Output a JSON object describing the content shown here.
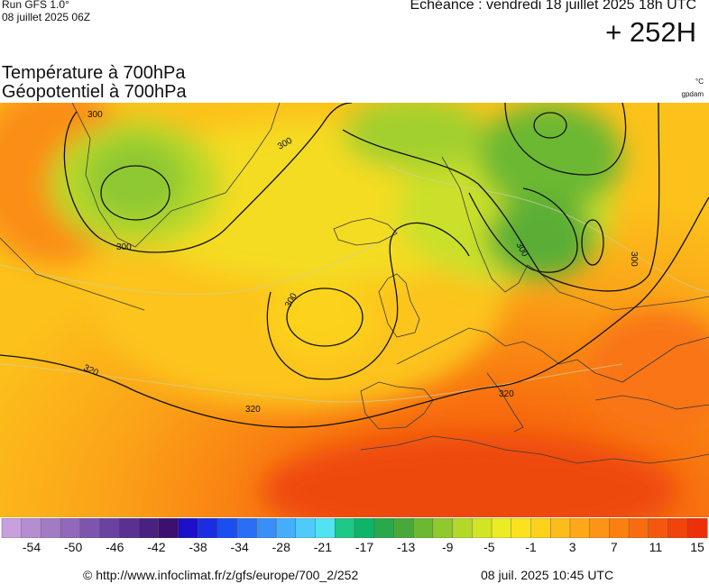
{
  "header": {
    "run_title": "Run GFS 1.0°",
    "run_date": "08 juillet 2025 06Z",
    "echeance": "Echéance : vendredi 18 juillet 2025 18h UTC",
    "lead_time": "+ 252H"
  },
  "titles": {
    "line1": "Température à 700hPa",
    "line2": "Géopotentiel à 700hPa"
  },
  "units": {
    "temperature": "°C",
    "geopotential": "gpdam"
  },
  "map": {
    "region": "Europe",
    "contour_labels": [
      {
        "value": "300"
      },
      {
        "value": "300"
      },
      {
        "value": "300"
      },
      {
        "value": "300"
      },
      {
        "value": "300"
      },
      {
        "value": "300"
      },
      {
        "value": "320"
      },
      {
        "value": "320"
      },
      {
        "value": "320"
      }
    ]
  },
  "colorbar": {
    "labels": [
      "-54",
      "-50",
      "-46",
      "-42",
      "-38",
      "-34",
      "-28",
      "-21",
      "-17",
      "-13",
      "-9",
      "-5",
      "-1",
      "3",
      "7",
      "11",
      "15"
    ],
    "colors": [
      "#c9a0dc",
      "#b58dd0",
      "#a37bc5",
      "#9168ba",
      "#7e55ae",
      "#6a42a2",
      "#5a3190",
      "#4a2080",
      "#3c1070",
      "#1c10c8",
      "#1a2ee0",
      "#1a4ef0",
      "#2a6ef5",
      "#3a8ef8",
      "#45aefa",
      "#4ecbfa",
      "#52e2f0",
      "#1ec886",
      "#10b468",
      "#2aa84c",
      "#4aa83a",
      "#6cb832",
      "#90c82e",
      "#b2d82a",
      "#d2e424",
      "#ecec22",
      "#fbe21e",
      "#fcd21c",
      "#fcbc1a",
      "#fca818",
      "#fc9416",
      "#fb8012",
      "#f86c10",
      "#f4580e",
      "#f0440c",
      "#ec300a"
    ]
  },
  "footer": {
    "url": "© http://www.infoclimat.fr/z/gfs/europe/700_2/252",
    "timestamp": "08 juil. 2025 10:45 UTC"
  }
}
